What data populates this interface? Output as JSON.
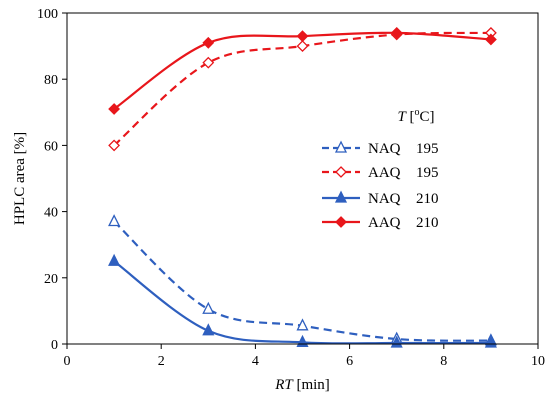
{
  "chart_data": {
    "type": "line",
    "xlabel_italic": "RT",
    "xlabel_rest": " [min]",
    "ylabel": "HPLC area [%]",
    "xlim": [
      0,
      10
    ],
    "ylim": [
      0,
      100
    ],
    "x_ticks": [
      "0",
      "2",
      "4",
      "6",
      "8",
      "10"
    ],
    "y_ticks": [
      "0",
      "20",
      "40",
      "60",
      "80",
      "100"
    ],
    "grid": false,
    "legend_title_italic": "T",
    "legend_title_rest": " [",
    "legend_title_sup": "o",
    "legend_title_end": "C]",
    "legend_placement": "center-right",
    "series": [
      {
        "name": "NAQ",
        "temp": "195",
        "color": "#2E5FBF",
        "dash": true,
        "marker": "triangle-open",
        "x": [
          1,
          3,
          5,
          7,
          9
        ],
        "y": [
          37,
          10.5,
          5.5,
          1.5,
          1
        ]
      },
      {
        "name": "AAQ",
        "temp": "195",
        "color": "#E8161B",
        "dash": true,
        "marker": "diamond-open",
        "x": [
          1,
          3,
          5,
          7,
          9
        ],
        "y": [
          60,
          85,
          90,
          93.5,
          94
        ]
      },
      {
        "name": "NAQ",
        "temp": "210",
        "color": "#2E5FBF",
        "dash": false,
        "marker": "triangle-filled",
        "x": [
          1,
          3,
          5,
          7,
          9
        ],
        "y": [
          25,
          4,
          0.5,
          0.3,
          0.3
        ]
      },
      {
        "name": "AAQ",
        "temp": "210",
        "color": "#E8161B",
        "dash": false,
        "marker": "diamond-filled",
        "x": [
          1,
          3,
          5,
          7,
          9
        ],
        "y": [
          71,
          91,
          93,
          94,
          92
        ]
      }
    ]
  }
}
